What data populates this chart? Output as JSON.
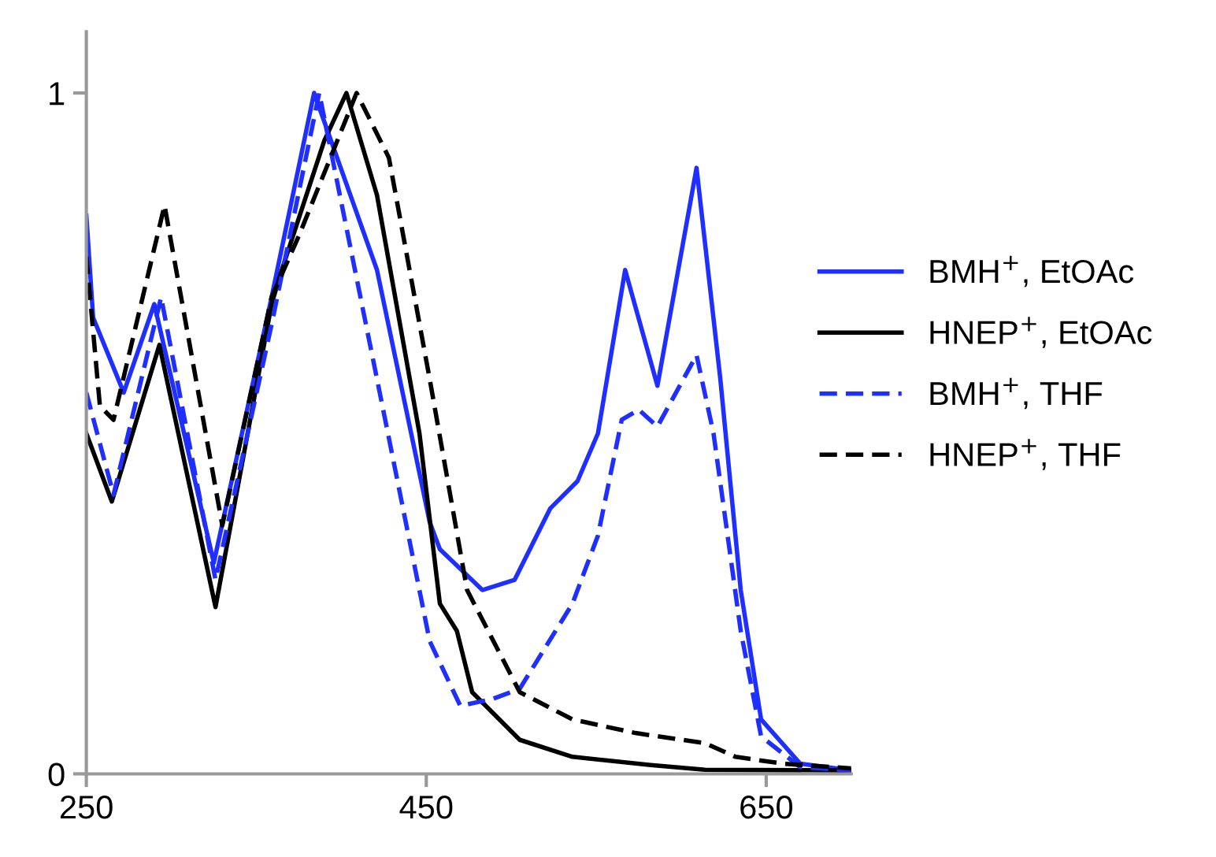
{
  "chart_data": {
    "type": "line",
    "xlim": [
      250,
      700
    ],
    "ylim": [
      0,
      1.09
    ],
    "xticks": [
      250,
      450,
      650
    ],
    "yticks": [
      0,
      1
    ],
    "grid": false,
    "legend": "right",
    "marker": "none",
    "series": [
      {
        "name": "BMH$^{+}$, EtOAc",
        "color": "#1f2fff",
        "line_style": "solid",
        "x": [
          250,
          254,
          272,
          290,
          325,
          359,
          384,
          421,
          452,
          458,
          483,
          502,
          523,
          539,
          551,
          567,
          586,
          609,
          623,
          635,
          647,
          670,
          700
        ],
        "values": [
          0.82,
          0.67,
          0.56,
          0.69,
          0.31,
          0.7,
          1.0,
          0.74,
          0.37,
          0.33,
          0.27,
          0.285,
          0.39,
          0.43,
          0.5,
          0.74,
          0.57,
          0.89,
          0.58,
          0.27,
          0.08,
          0.015,
          0.005
        ]
      },
      {
        "name": "HNEP$^{+}$, EtOAc",
        "color": "#000000",
        "line_style": "solid",
        "x": [
          250,
          265,
          293,
          326,
          359,
          365,
          390,
          403,
          421,
          446,
          458,
          468,
          477,
          505,
          536,
          582,
          614,
          700
        ],
        "values": [
          0.5,
          0.4,
          0.63,
          0.245,
          0.69,
          0.74,
          0.93,
          1.0,
          0.85,
          0.5,
          0.25,
          0.21,
          0.12,
          0.05,
          0.025,
          0.013,
          0.006,
          0.005
        ]
      },
      {
        "name": "BMH$^{+}$, THF",
        "color": "#1f2fff",
        "line_style": "dashed",
        "x": [
          250,
          266,
          294,
          326,
          359,
          387,
          421,
          452,
          470,
          489,
          505,
          536,
          551,
          565,
          575,
          586,
          609,
          619,
          635,
          647,
          670,
          700
        ],
        "values": [
          0.56,
          0.41,
          0.7,
          0.285,
          0.66,
          1.0,
          0.58,
          0.195,
          0.1,
          0.11,
          0.125,
          0.25,
          0.35,
          0.52,
          0.535,
          0.51,
          0.615,
          0.5,
          0.21,
          0.055,
          0.01,
          0.005
        ]
      },
      {
        "name": "HNEP$^{+}$, THF",
        "color": "#000000",
        "line_style": "dashed",
        "x": [
          250,
          258,
          266,
          296,
          330,
          359,
          375,
          409,
          428,
          452,
          474,
          505,
          536,
          573,
          614,
          632,
          660,
          700
        ],
        "values": [
          0.76,
          0.54,
          0.52,
          0.835,
          0.365,
          0.7,
          0.79,
          1.0,
          0.905,
          0.58,
          0.27,
          0.12,
          0.08,
          0.06,
          0.045,
          0.025,
          0.015,
          0.008
        ]
      }
    ]
  }
}
